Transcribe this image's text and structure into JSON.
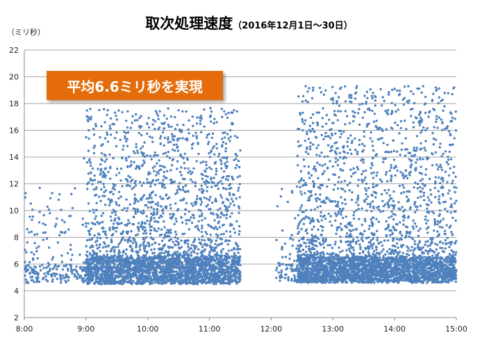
{
  "chart_data": {
    "type": "scatter",
    "title": "取次処理速度",
    "subtitle": "（2016年12月1日～30日）",
    "ylabel": "（ミリ秒）",
    "xlabel": "",
    "ylim": [
      2,
      22
    ],
    "y_ticks": [
      "2",
      "4",
      "6",
      "8",
      "10",
      "12",
      "14",
      "16",
      "18",
      "20",
      "22"
    ],
    "x_range": [
      "8:00",
      "15:00"
    ],
    "x_ticks": [
      "8:00",
      "9:00",
      "10:00",
      "11:00",
      "12:00",
      "13:00",
      "14:00",
      "15:00"
    ],
    "grid": true,
    "annotation": "平均6.6ミリ秒を実現",
    "series": [
      {
        "color": "#4f81bd",
        "point_bands": [
          {
            "x_start": "8:00",
            "x_end": "9:00",
            "count": 220,
            "y_base": [
              4.6,
              6.0
            ],
            "y_max": 12.0
          },
          {
            "x_start": "9:00",
            "x_end": "11:30",
            "count": 3400,
            "y_base": [
              4.5,
              6.5
            ],
            "y_max": 17.7
          },
          {
            "x_start": "12:05",
            "x_end": "12:25",
            "count": 70,
            "y_base": [
              4.6,
              6.0
            ],
            "y_max": 11.8
          },
          {
            "x_start": "12:25",
            "x_end": "15:00",
            "count": 3700,
            "y_base": [
              4.6,
              6.5
            ],
            "y_max": 19.3
          }
        ],
        "points": [
          {
            "x": "8:02",
            "y": 4.6
          },
          {
            "x": "8:10",
            "y": 8.2
          },
          {
            "x": "8:12",
            "y": 7.2
          },
          {
            "x": "8:15",
            "y": 11.7
          },
          {
            "x": "8:22",
            "y": 7.9
          },
          {
            "x": "8:27",
            "y": 11.3
          },
          {
            "x": "8:40",
            "y": 8.4
          },
          {
            "x": "8:45",
            "y": 9.6
          },
          {
            "x": "8:58",
            "y": 13.9
          },
          {
            "x": "9:02",
            "y": 17.0
          },
          {
            "x": "9:05",
            "y": 17.0
          },
          {
            "x": "9:15",
            "y": 16.3
          },
          {
            "x": "9:30",
            "y": 16.8
          },
          {
            "x": "10:10",
            "y": 17.1
          },
          {
            "x": "10:30",
            "y": 17.5
          },
          {
            "x": "11:12",
            "y": 17.6
          },
          {
            "x": "11:30",
            "y": 14.5
          },
          {
            "x": "13:00",
            "y": 18.4
          },
          {
            "x": "13:07",
            "y": 19.1
          },
          {
            "x": "13:08",
            "y": 19.2
          },
          {
            "x": "13:18",
            "y": 18.1
          },
          {
            "x": "13:50",
            "y": 18.2
          },
          {
            "x": "14:00",
            "y": 19.1
          },
          {
            "x": "14:05",
            "y": 18.7
          },
          {
            "x": "14:40",
            "y": 19.2
          },
          {
            "x": "14:58",
            "y": 19.2
          },
          {
            "x": "14:56",
            "y": 18.7
          },
          {
            "x": "14:30",
            "y": 18.5
          },
          {
            "x": "14:30",
            "y": 18.0
          },
          {
            "x": "14:30",
            "y": 17.3
          },
          {
            "x": "14:30",
            "y": 16.0
          },
          {
            "x": "14:30",
            "y": 14.5
          },
          {
            "x": "14:40",
            "y": 15.3
          }
        ]
      }
    ]
  }
}
